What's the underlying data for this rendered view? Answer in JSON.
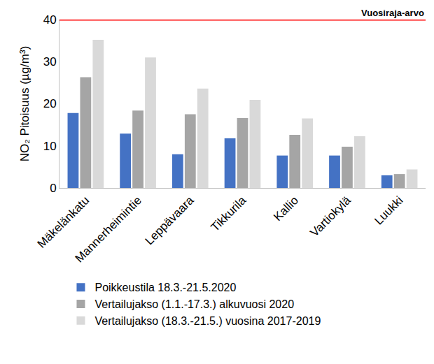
{
  "chart_data": {
    "type": "bar",
    "y_label": "NO₂ Pitoisuus (µg/m³)",
    "categories": [
      "Mäkelänkatu",
      "Mannerheimintie",
      "Leppävaara",
      "Tikkurila",
      "Kallio",
      "Vartiokylä",
      "Luukki"
    ],
    "series": [
      {
        "name": "Poikkeustila 18.3.-21.5.2020",
        "color": "#4472c4",
        "values": [
          17.8,
          12.9,
          8.0,
          11.8,
          7.7,
          7.7,
          3.0
        ]
      },
      {
        "name": "Vertailujakso (1.1.-17.3.) alkuvuosi 2020",
        "color": "#a5a5a5",
        "values": [
          26.3,
          18.4,
          17.5,
          16.6,
          12.6,
          9.8,
          3.3
        ]
      },
      {
        "name": "Vertailujakso (18.3.-21.5.) vuosina 2017-2019",
        "color": "#d9d9d9",
        "values": [
          35.2,
          31.0,
          23.6,
          20.9,
          16.5,
          12.3,
          4.4
        ]
      }
    ],
    "ylim": [
      0,
      40
    ],
    "yticks": [
      0,
      10,
      20,
      30,
      40
    ],
    "grid": false,
    "legend": "bottom",
    "annotations": [
      {
        "text": "Vuosiraja-arvo",
        "value": 40,
        "color": "#ff0000",
        "line_style": "solid"
      }
    ]
  }
}
